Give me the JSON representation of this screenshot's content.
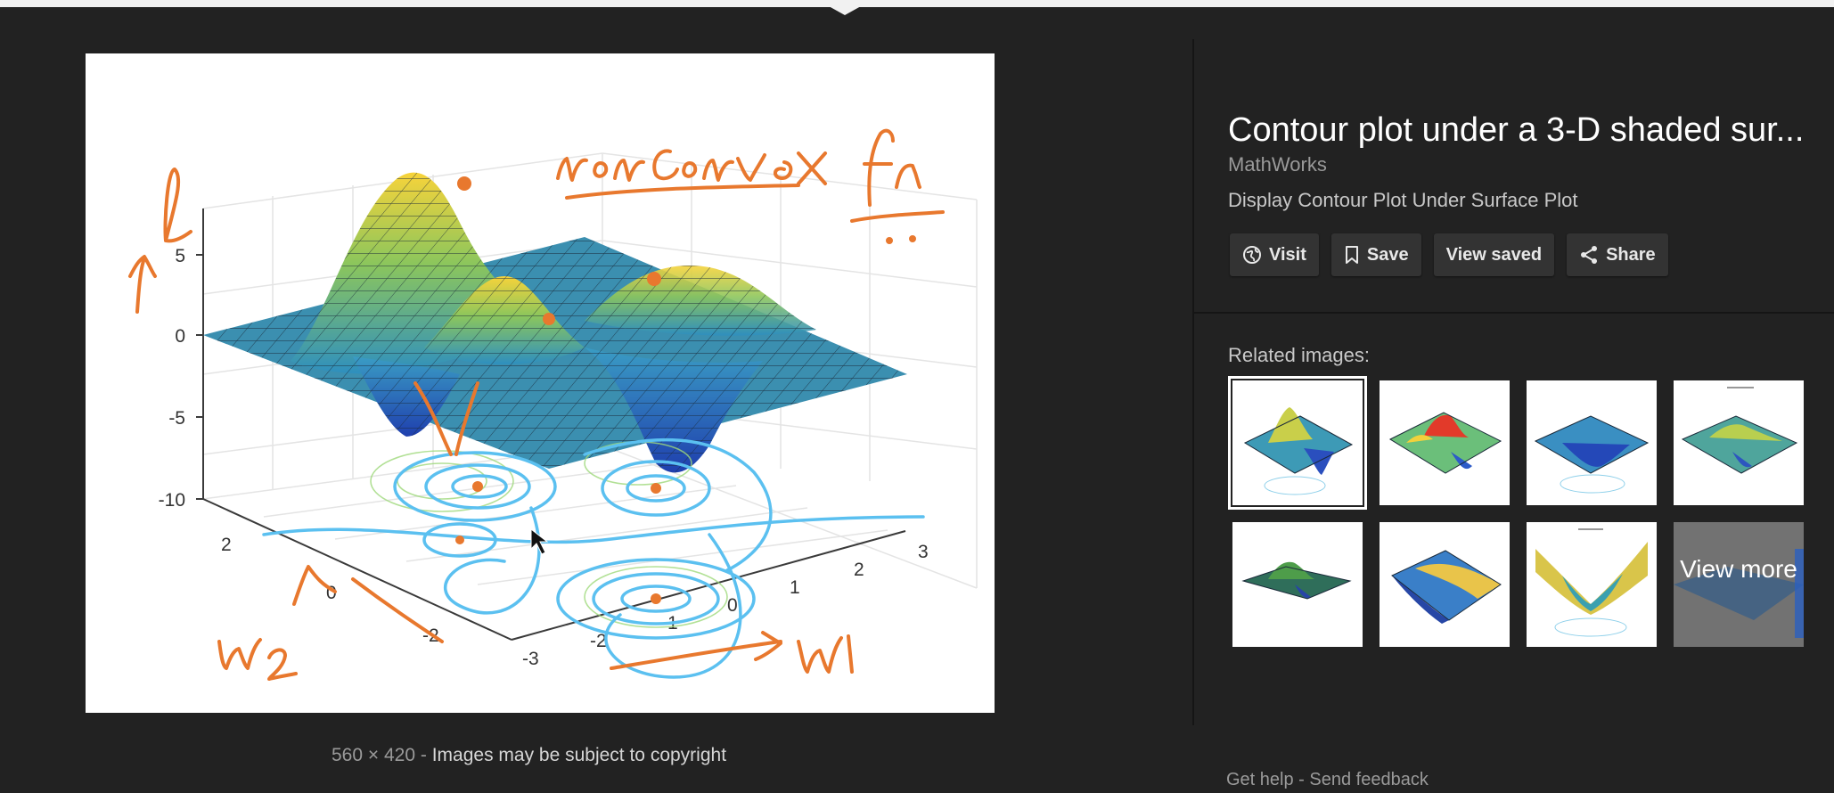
{
  "preview": {
    "image": {
      "axes_ticks_z": [
        "5",
        "0",
        "-5",
        "-10"
      ],
      "axes_ticks_y": [
        "2",
        "0",
        "-2"
      ],
      "axes_ticks_x": [
        "-3",
        "-2",
        "-1",
        "0",
        "1",
        "2",
        "3"
      ],
      "handwriting": {
        "top_note": "nonConvex fn",
        "z_label": "L",
        "w1_label": "w1",
        "w2_label": "w2"
      }
    },
    "dimensions": "560 × 420",
    "separator": "-",
    "copyright_notice": "Images may be subject to copyright"
  },
  "info": {
    "title": "Contour plot under a 3-D shaded sur...",
    "source": "MathWorks",
    "subtitle": "Display Contour Plot Under Surface Plot"
  },
  "actions": {
    "visit": "Visit",
    "save": "Save",
    "view_saved": "View saved",
    "share": "Share"
  },
  "related": {
    "label": "Related images:",
    "view_more": "View more"
  },
  "footer": {
    "help": "Get help",
    "separator": "-",
    "feedback": "Send feedback"
  },
  "colors": {
    "background": "#222222",
    "button": "#333333",
    "ink": "#e8782e",
    "contour": "#5bc0f0"
  }
}
